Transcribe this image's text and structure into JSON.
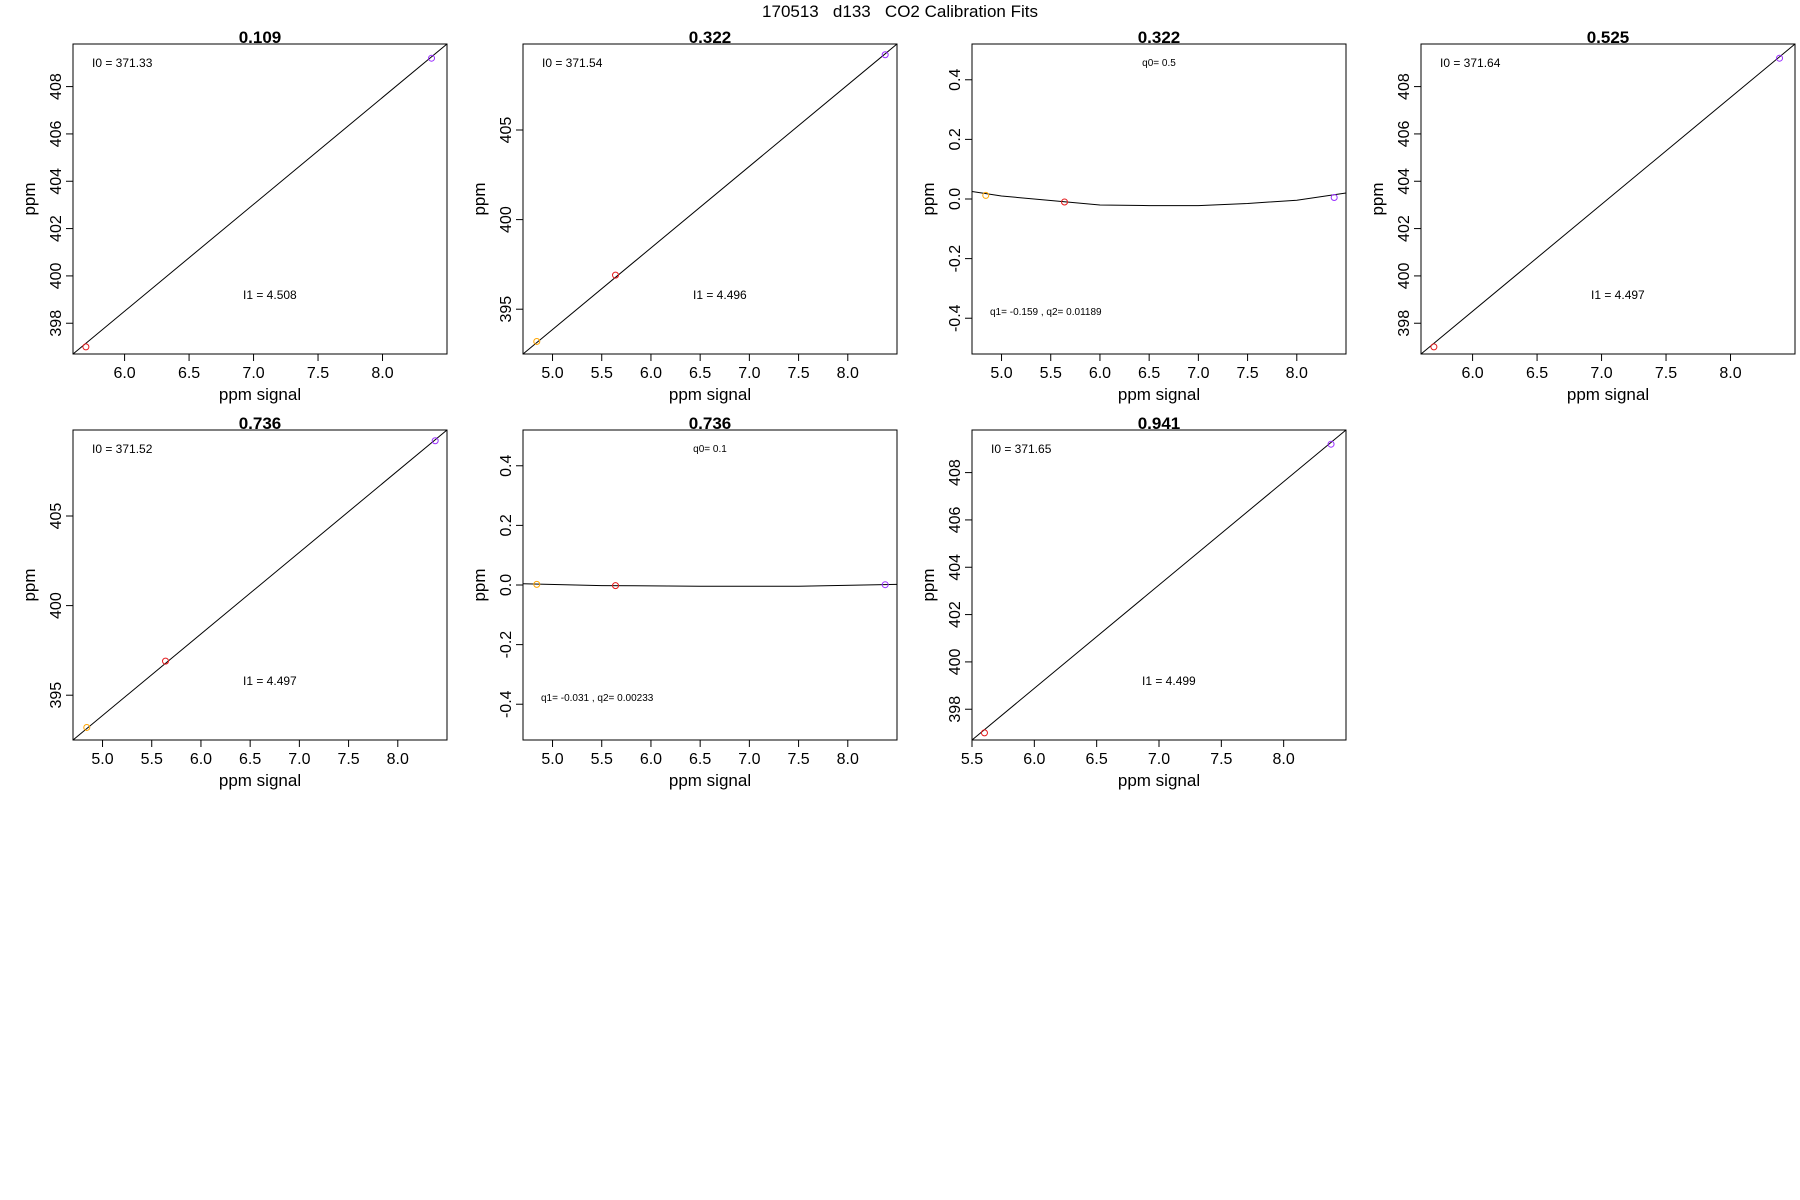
{
  "title": "170513   d133   CO2 Calibration Fits",
  "colors": {
    "frame": "#000000",
    "fit_line": "#000000"
  },
  "chart_data": [
    {
      "type": "scatter",
      "title": "0.109",
      "xlabel": "ppm signal",
      "ylabel": "ppm",
      "xlim": [
        5.6,
        8.5
      ],
      "ylim": [
        396.7,
        409.8
      ],
      "xticks": [
        "6.0",
        "6.5",
        "7.0",
        "7.5",
        "8.0"
      ],
      "yticks": [
        "398",
        "400",
        "402",
        "404",
        "406",
        "408"
      ],
      "points": [
        {
          "x": 5.7,
          "y": 397.0,
          "color": "#e41a1c"
        },
        {
          "x": 8.38,
          "y": 409.2,
          "color": "#9b30ff"
        }
      ],
      "fit_line": {
        "x": [
          5.6,
          8.5
        ],
        "y": [
          396.7,
          409.8
        ]
      },
      "annotations": [
        "I0 =  371.33",
        "I1 =  4.508"
      ]
    },
    {
      "type": "scatter",
      "title": "0.322",
      "xlabel": "ppm signal",
      "ylabel": "ppm",
      "xlim": [
        4.7,
        8.5
      ],
      "ylim": [
        392.5,
        409.8
      ],
      "xticks": [
        "5.0",
        "5.5",
        "6.0",
        "6.5",
        "7.0",
        "7.5",
        "8.0"
      ],
      "yticks": [
        "395",
        "400",
        "405"
      ],
      "points": [
        {
          "x": 4.84,
          "y": 393.2,
          "color": "#ffa500"
        },
        {
          "x": 5.64,
          "y": 396.9,
          "color": "#e41a1c"
        },
        {
          "x": 8.38,
          "y": 409.2,
          "color": "#9b30ff"
        }
      ],
      "fit_line": {
        "x": [
          4.7,
          8.5
        ],
        "y": [
          392.5,
          409.8
        ]
      },
      "annotations": [
        "I0 =  371.54",
        "I1 =  4.496"
      ]
    },
    {
      "type": "scatter",
      "title": "0.322",
      "xlabel": "ppm signal",
      "ylabel": "ppm",
      "xlim": [
        4.7,
        8.5
      ],
      "ylim": [
        -0.52,
        0.52
      ],
      "xticks": [
        "5.0",
        "5.5",
        "6.0",
        "6.5",
        "7.0",
        "7.5",
        "8.0"
      ],
      "yticks": [
        "-0.4",
        "-0.2",
        "0.0",
        "0.2",
        "0.4"
      ],
      "points": [
        {
          "x": 4.84,
          "y": 0.012,
          "color": "#ffa500"
        },
        {
          "x": 5.64,
          "y": -0.01,
          "color": "#e41a1c"
        },
        {
          "x": 8.38,
          "y": 0.005,
          "color": "#9b30ff"
        }
      ],
      "fit_line": {
        "x": [
          4.7,
          5.0,
          5.5,
          6.0,
          6.5,
          7.0,
          7.5,
          8.0,
          8.5
        ],
        "y": [
          0.025,
          0.01,
          -0.005,
          -0.02,
          -0.022,
          -0.022,
          -0.015,
          -0.004,
          0.02
        ]
      },
      "annotations": [
        "q0= 0.5",
        "q1= -0.159 , q2= 0.01189"
      ]
    },
    {
      "type": "scatter",
      "title": "0.525",
      "xlabel": "ppm signal",
      "ylabel": "ppm",
      "xlim": [
        5.6,
        8.5
      ],
      "ylim": [
        396.7,
        409.8
      ],
      "xticks": [
        "6.0",
        "6.5",
        "7.0",
        "7.5",
        "8.0"
      ],
      "yticks": [
        "398",
        "400",
        "402",
        "404",
        "406",
        "408"
      ],
      "points": [
        {
          "x": 5.7,
          "y": 397.0,
          "color": "#e41a1c"
        },
        {
          "x": 8.38,
          "y": 409.2,
          "color": "#9b30ff"
        }
      ],
      "fit_line": {
        "x": [
          5.6,
          8.5
        ],
        "y": [
          396.7,
          409.8
        ]
      },
      "annotations": [
        "I0 =  371.64",
        "I1 =  4.497"
      ]
    },
    {
      "type": "scatter",
      "title": "0.736",
      "xlabel": "ppm signal",
      "ylabel": "ppm",
      "xlim": [
        4.7,
        8.5
      ],
      "ylim": [
        392.5,
        409.8
      ],
      "xticks": [
        "5.0",
        "5.5",
        "6.0",
        "6.5",
        "7.0",
        "7.5",
        "8.0"
      ],
      "yticks": [
        "395",
        "400",
        "405"
      ],
      "points": [
        {
          "x": 4.84,
          "y": 393.2,
          "color": "#ffa500"
        },
        {
          "x": 5.64,
          "y": 396.9,
          "color": "#e41a1c"
        },
        {
          "x": 8.38,
          "y": 409.2,
          "color": "#9b30ff"
        }
      ],
      "fit_line": {
        "x": [
          4.7,
          8.5
        ],
        "y": [
          392.5,
          409.8
        ]
      },
      "annotations": [
        "I0 =  371.52",
        "I1 =  4.497"
      ]
    },
    {
      "type": "scatter",
      "title": "0.736",
      "xlabel": "ppm signal",
      "ylabel": "ppm",
      "xlim": [
        4.7,
        8.5
      ],
      "ylim": [
        -0.52,
        0.52
      ],
      "xticks": [
        "5.0",
        "5.5",
        "6.0",
        "6.5",
        "7.0",
        "7.5",
        "8.0"
      ],
      "yticks": [
        "-0.4",
        "-0.2",
        "0.0",
        "0.2",
        "0.4"
      ],
      "points": [
        {
          "x": 4.84,
          "y": 0.002,
          "color": "#ffa500"
        },
        {
          "x": 5.64,
          "y": -0.002,
          "color": "#e41a1c"
        },
        {
          "x": 8.38,
          "y": 0.001,
          "color": "#9b30ff"
        }
      ],
      "fit_line": {
        "x": [
          4.7,
          5.5,
          6.5,
          7.5,
          8.5
        ],
        "y": [
          0.004,
          -0.002,
          -0.004,
          -0.004,
          0.002
        ]
      },
      "annotations": [
        "q0= 0.1",
        "q1= -0.031 , q2= 0.00233"
      ]
    },
    {
      "type": "scatter",
      "title": "0.941",
      "xlabel": "ppm signal",
      "ylabel": "ppm",
      "xlim": [
        5.5,
        8.5
      ],
      "ylim": [
        396.7,
        409.8
      ],
      "xticks": [
        "5.5",
        "6.0",
        "6.5",
        "7.0",
        "7.5",
        "8.0"
      ],
      "yticks": [
        "398",
        "400",
        "402",
        "404",
        "406",
        "408"
      ],
      "points": [
        {
          "x": 5.6,
          "y": 397.0,
          "color": "#e41a1c"
        },
        {
          "x": 8.38,
          "y": 409.2,
          "color": "#9b30ff"
        }
      ],
      "fit_line": {
        "x": [
          5.5,
          8.5
        ],
        "y": [
          396.7,
          409.8
        ]
      },
      "annotations": [
        "I0 =  371.65",
        "I1 =  4.499"
      ]
    }
  ]
}
